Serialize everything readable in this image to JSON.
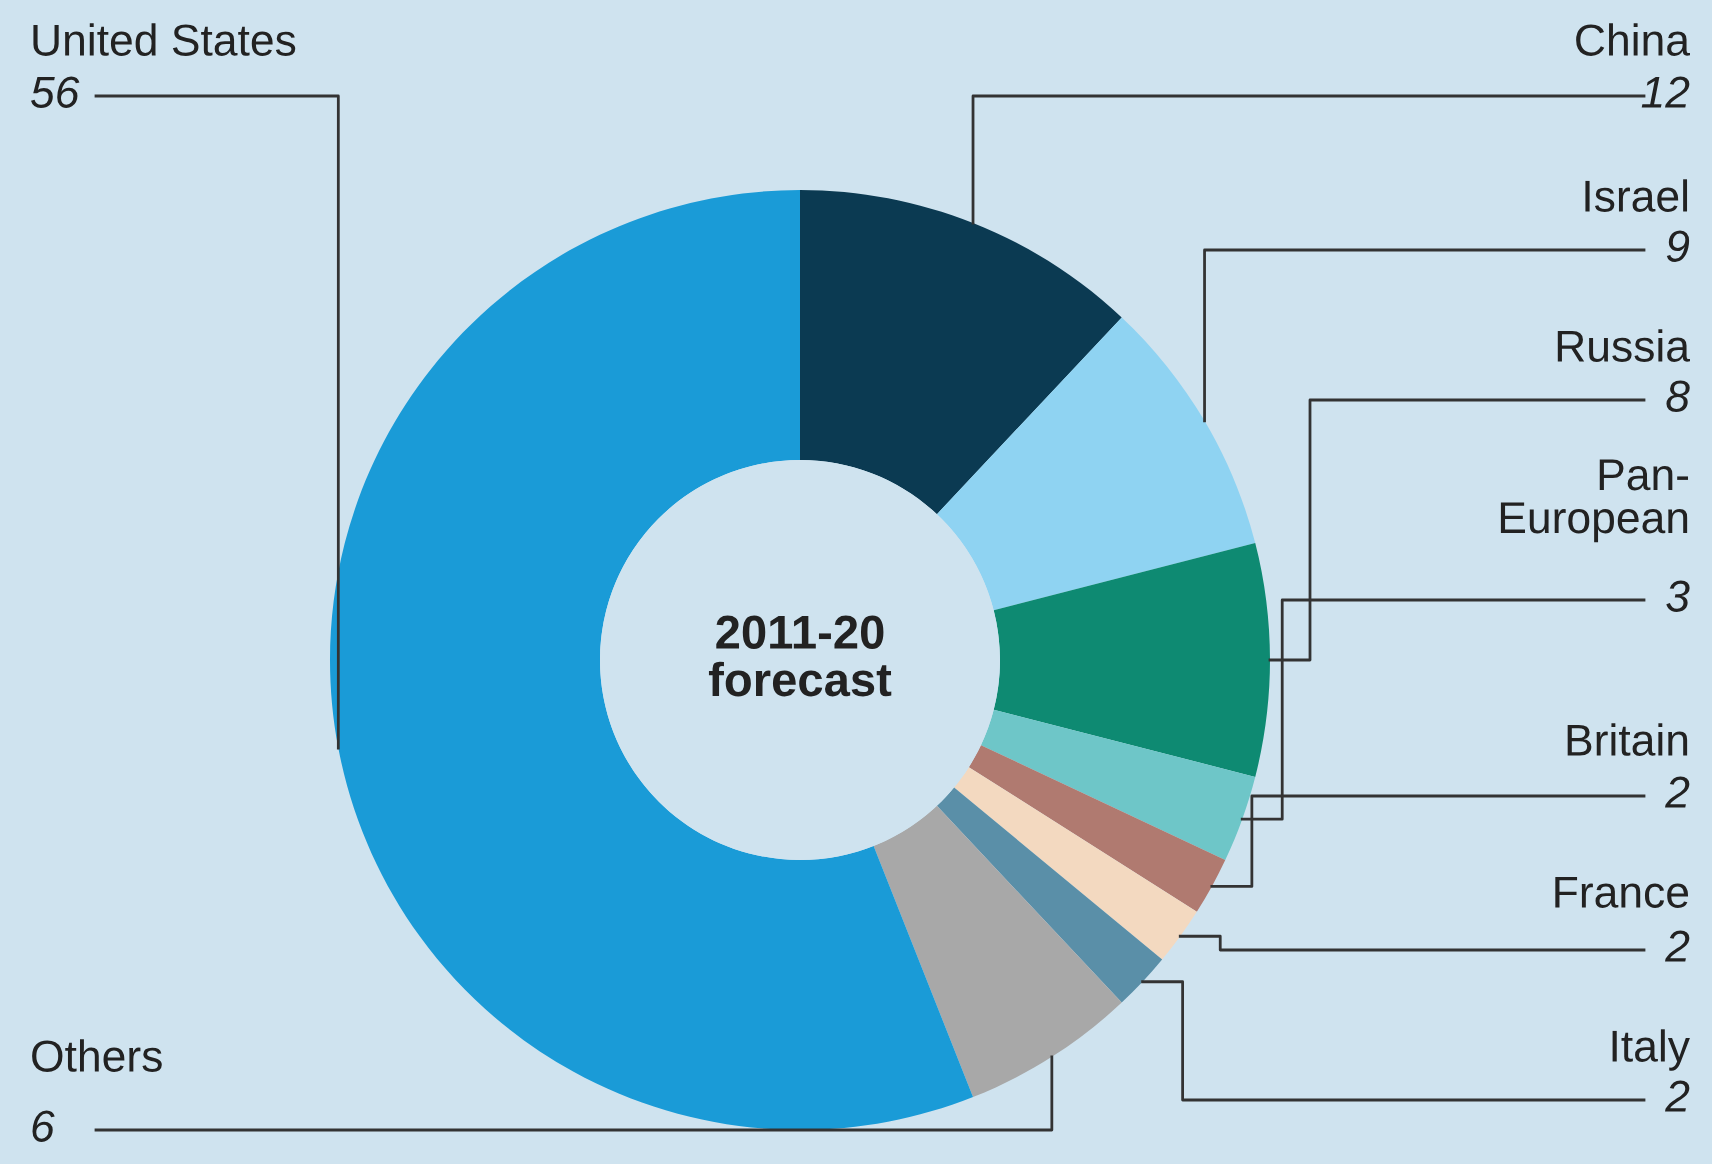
{
  "chart_data": {
    "type": "donut",
    "title": "2011-20\nforecast",
    "categories": [
      "China",
      "Israel",
      "Russia",
      "Pan-\nEuropean",
      "Britain",
      "France",
      "Italy",
      "Others",
      "United States"
    ],
    "values": [
      12,
      9,
      8,
      3,
      2,
      2,
      2,
      6,
      56
    ],
    "colors": [
      "#0b3a52",
      "#8fd3f2",
      "#0e8a72",
      "#6ec6c8",
      "#b07a70",
      "#f3d9c0",
      "#5a8fa8",
      "#a8a8a8",
      "#1a9bd7"
    ],
    "data_labels": true
  }
}
